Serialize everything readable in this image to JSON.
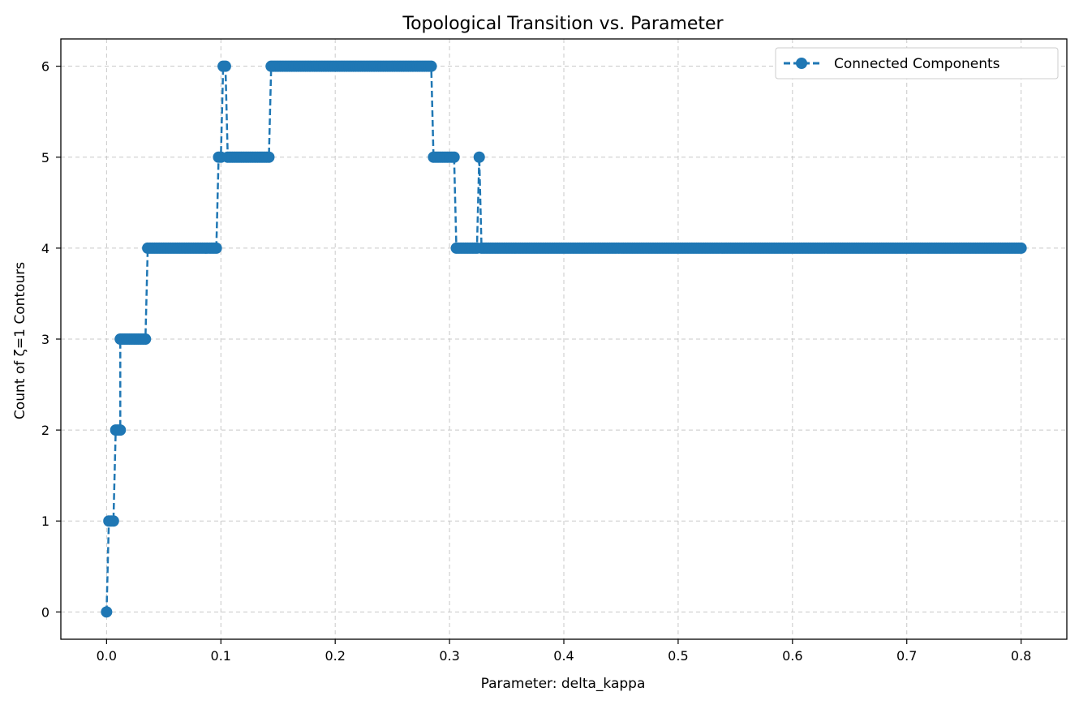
{
  "chart_data": {
    "type": "line",
    "title": "Topological Transition vs. Parameter",
    "xlabel": "Parameter: delta_kappa",
    "ylabel": "Count of ζ=1 Contours",
    "xlim": [
      -0.04,
      0.84
    ],
    "ylim": [
      -0.3,
      6.3
    ],
    "xticks": [
      0.0,
      0.1,
      0.2,
      0.3,
      0.4,
      0.5,
      0.6,
      0.7,
      0.8
    ],
    "xtick_labels": [
      "0.0",
      "0.1",
      "0.2",
      "0.3",
      "0.4",
      "0.5",
      "0.6",
      "0.7",
      "0.8"
    ],
    "yticks": [
      0,
      1,
      2,
      3,
      4,
      5,
      6
    ],
    "ytick_labels": [
      "0",
      "1",
      "2",
      "3",
      "4",
      "5",
      "6"
    ],
    "grid": true,
    "legend_position": "top-right",
    "line_style": "dashed",
    "marker": "circle",
    "color": "#1f77b4",
    "series": [
      {
        "name": "Connected Components",
        "segments": [
          {
            "x_start": 0.0,
            "x_end": 0.0,
            "y": 0
          },
          {
            "x_start": 0.002,
            "x_end": 0.006,
            "y": 1
          },
          {
            "x_start": 0.008,
            "x_end": 0.012,
            "y": 2
          },
          {
            "x_start": 0.012,
            "x_end": 0.034,
            "y": 3
          },
          {
            "x_start": 0.036,
            "x_end": 0.096,
            "y": 4
          },
          {
            "x_start": 0.098,
            "x_end": 0.1,
            "y": 5
          },
          {
            "x_start": 0.102,
            "x_end": 0.104,
            "y": 6
          },
          {
            "x_start": 0.106,
            "x_end": 0.142,
            "y": 5
          },
          {
            "x_start": 0.144,
            "x_end": 0.284,
            "y": 6
          },
          {
            "x_start": 0.286,
            "x_end": 0.304,
            "y": 5
          },
          {
            "x_start": 0.306,
            "x_end": 0.324,
            "y": 4
          },
          {
            "x_start": 0.326,
            "x_end": 0.326,
            "y": 5
          },
          {
            "x_start": 0.328,
            "x_end": 0.8,
            "y": 4
          }
        ],
        "x_step": 0.002
      }
    ]
  }
}
